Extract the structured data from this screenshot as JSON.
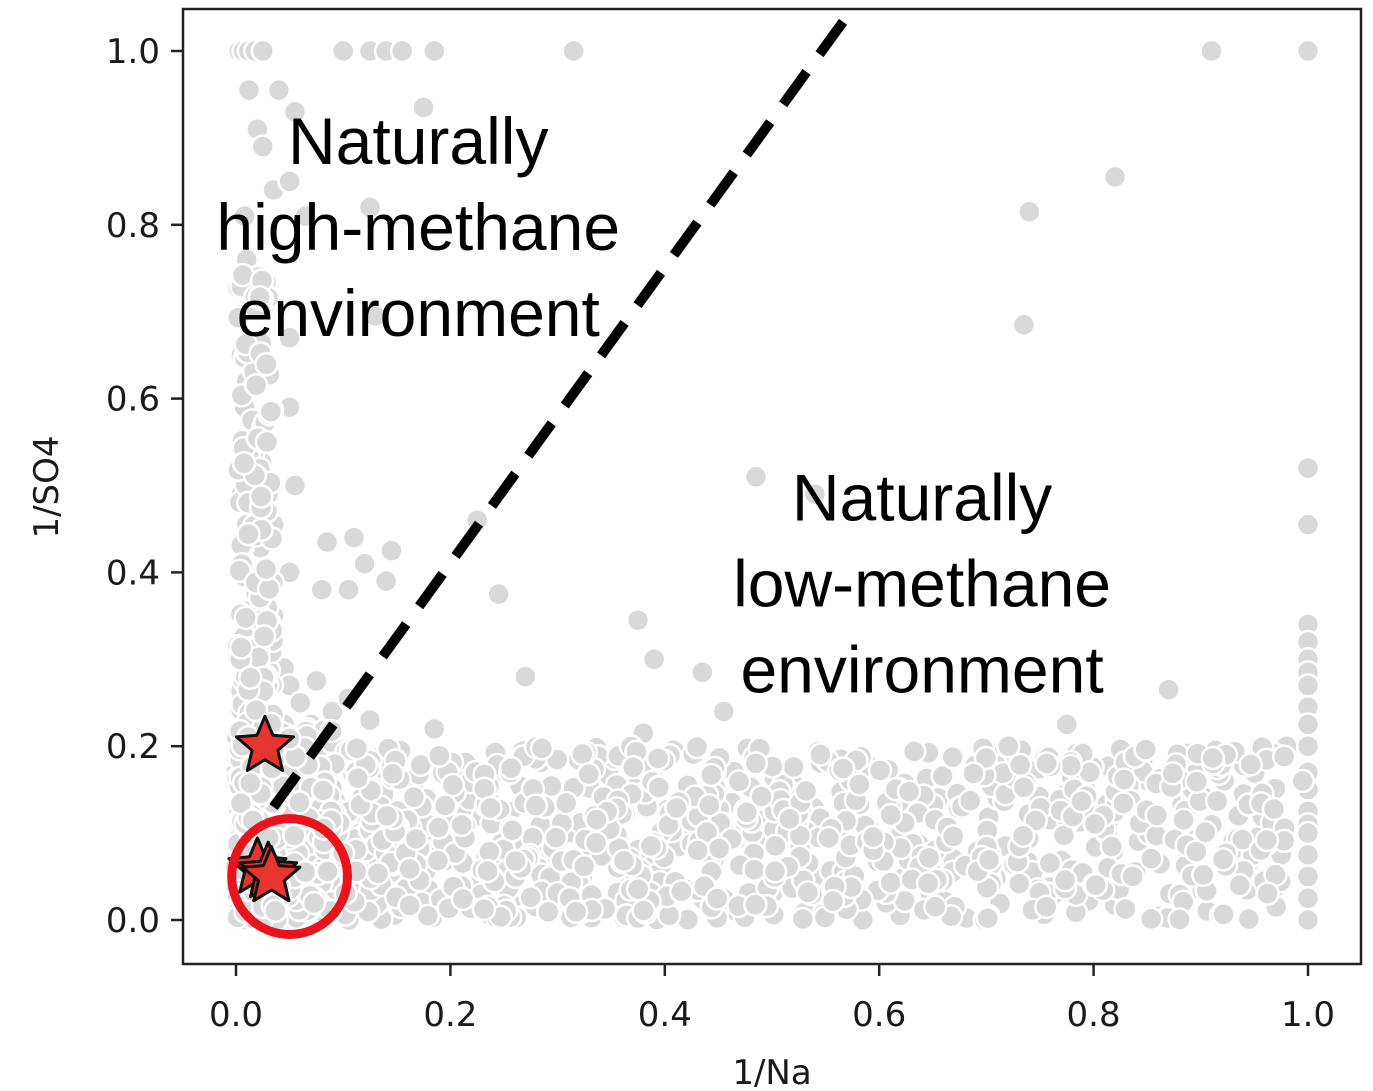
{
  "chart_data": {
    "type": "scatter",
    "xlabel": "1/Na",
    "ylabel": "1/SO4",
    "xlim": [
      -0.05,
      1.05
    ],
    "ylim": [
      -0.05,
      1.05
    ],
    "x_ticks": [
      "0.0",
      "0.2",
      "0.4",
      "0.6",
      "0.8",
      "1.0"
    ],
    "y_ticks": [
      "0.0",
      "0.2",
      "0.4",
      "0.6",
      "0.8",
      "1.0"
    ],
    "x_tick_values": [
      0.0,
      0.2,
      0.4,
      0.6,
      0.8,
      1.0
    ],
    "y_tick_values": [
      0.0,
      0.2,
      0.4,
      0.6,
      0.8,
      1.0
    ],
    "grid": false,
    "point_color": "#d9d9d9",
    "point_edge": "#ffffff",
    "star_color": "#e8342f",
    "circle_color": "#e8131b",
    "divider_line": {
      "style": "dashed",
      "color": "#000000",
      "x": [
        0.035,
        0.57
      ],
      "y": [
        0.13,
        1.04
      ]
    },
    "annotations": [
      {
        "text_lines": [
          "Naturally",
          "high-methane",
          "environment"
        ],
        "x": 0.17,
        "y": 0.87
      },
      {
        "text_lines": [
          "Naturally",
          "low-methane",
          "environment"
        ],
        "x": 0.64,
        "y": 0.46
      }
    ],
    "highlight_circle": {
      "x": 0.05,
      "y": 0.05,
      "radius": 0.05
    },
    "stars": [
      {
        "x": 0.027,
        "y": 0.2
      },
      {
        "x": 0.02,
        "y": 0.06
      },
      {
        "x": 0.03,
        "y": 0.055
      },
      {
        "x": 0.033,
        "y": 0.05
      }
    ],
    "series": [
      {
        "points": [
          [
            0.003,
            1.0
          ],
          [
            0.007,
            1.0
          ],
          [
            0.012,
            1.0
          ],
          [
            0.018,
            1.0
          ],
          [
            0.025,
            1.0
          ],
          [
            0.1,
            1.0
          ],
          [
            0.125,
            1.0
          ],
          [
            0.14,
            1.0
          ],
          [
            0.155,
            1.0
          ],
          [
            0.185,
            1.0
          ],
          [
            0.315,
            1.0
          ],
          [
            0.91,
            1.0
          ],
          [
            1.0,
            1.0
          ],
          [
            0.012,
            0.955
          ],
          [
            0.04,
            0.955
          ],
          [
            0.055,
            0.93
          ],
          [
            0.175,
            0.935
          ],
          [
            0.02,
            0.91
          ],
          [
            0.025,
            0.89
          ],
          [
            0.035,
            0.84
          ],
          [
            0.05,
            0.85
          ],
          [
            0.125,
            0.82
          ],
          [
            0.065,
            0.81
          ],
          [
            0.008,
            0.81
          ],
          [
            0.82,
            0.855
          ],
          [
            0.74,
            0.815
          ],
          [
            0.01,
            0.76
          ],
          [
            0.02,
            0.74
          ],
          [
            0.025,
            0.72
          ],
          [
            0.03,
            0.72
          ],
          [
            0.13,
            0.695
          ],
          [
            0.05,
            0.67
          ],
          [
            0.735,
            0.685
          ],
          [
            0.005,
            0.65
          ],
          [
            0.01,
            0.62
          ],
          [
            0.008,
            0.59
          ],
          [
            0.015,
            0.575
          ],
          [
            0.025,
            0.565
          ],
          [
            0.05,
            0.59
          ],
          [
            0.03,
            0.55
          ],
          [
            0.003,
            0.515
          ],
          [
            0.018,
            0.515
          ],
          [
            0.005,
            0.49
          ],
          [
            0.03,
            0.49
          ],
          [
            0.055,
            0.5
          ],
          [
            0.225,
            0.46
          ],
          [
            0.485,
            0.51
          ],
          [
            0.54,
            0.49
          ],
          [
            0.01,
            0.455
          ],
          [
            0.035,
            0.455
          ],
          [
            0.01,
            0.435
          ],
          [
            0.085,
            0.435
          ],
          [
            0.11,
            0.44
          ],
          [
            0.12,
            0.41
          ],
          [
            0.145,
            0.425
          ],
          [
            0.14,
            0.39
          ],
          [
            0.008,
            0.395
          ],
          [
            0.028,
            0.395
          ],
          [
            0.05,
            0.4
          ],
          [
            0.08,
            0.38
          ],
          [
            0.105,
            0.38
          ],
          [
            0.245,
            0.375
          ],
          [
            0.01,
            0.35
          ],
          [
            0.035,
            0.35
          ],
          [
            0.375,
            0.345
          ],
          [
            0.39,
            0.3
          ],
          [
            0.01,
            0.32
          ],
          [
            0.02,
            0.3
          ],
          [
            0.045,
            0.29
          ],
          [
            0.27,
            0.28
          ],
          [
            0.435,
            0.285
          ],
          [
            0.01,
            0.27
          ],
          [
            0.03,
            0.265
          ],
          [
            0.05,
            0.27
          ],
          [
            0.075,
            0.275
          ],
          [
            0.87,
            0.265
          ],
          [
            0.01,
            0.245
          ],
          [
            0.03,
            0.235
          ],
          [
            0.06,
            0.25
          ],
          [
            0.09,
            0.24
          ],
          [
            0.105,
            0.255
          ],
          [
            0.455,
            0.24
          ],
          [
            0.01,
            0.22
          ],
          [
            0.045,
            0.225
          ],
          [
            0.07,
            0.225
          ],
          [
            0.125,
            0.23
          ],
          [
            0.185,
            0.22
          ],
          [
            0.38,
            0.215
          ],
          [
            0.775,
            0.225
          ],
          [
            1.0,
            0.52
          ],
          [
            1.0,
            0.455
          ],
          [
            1.0,
            0.34
          ],
          [
            1.0,
            0.32
          ],
          [
            1.0,
            0.3
          ],
          [
            1.0,
            0.285
          ],
          [
            1.0,
            0.27
          ],
          [
            1.0,
            0.245
          ],
          [
            1.0,
            0.225
          ],
          [
            1.0,
            0.2
          ],
          [
            1.0,
            0.17
          ],
          [
            1.0,
            0.15
          ],
          [
            1.0,
            0.125
          ],
          [
            1.0,
            0.11
          ],
          [
            1.0,
            0.1
          ],
          [
            1.0,
            0.075
          ],
          [
            1.0,
            0.05
          ],
          [
            1.0,
            0.025
          ],
          [
            1.0,
            0.0
          ],
          [
            0.995,
            0.16
          ],
          [
            0.91,
            0.175
          ],
          [
            0.905,
            0.01
          ],
          [
            0.94,
            0.145
          ],
          [
            0.955,
            0.2
          ],
          [
            0.98,
            0.2
          ],
          [
            0.975,
            0.075
          ],
          [
            0.93,
            0.09
          ],
          [
            0.935,
            0.07
          ],
          [
            0.935,
            0.12
          ]
        ]
      }
    ]
  }
}
